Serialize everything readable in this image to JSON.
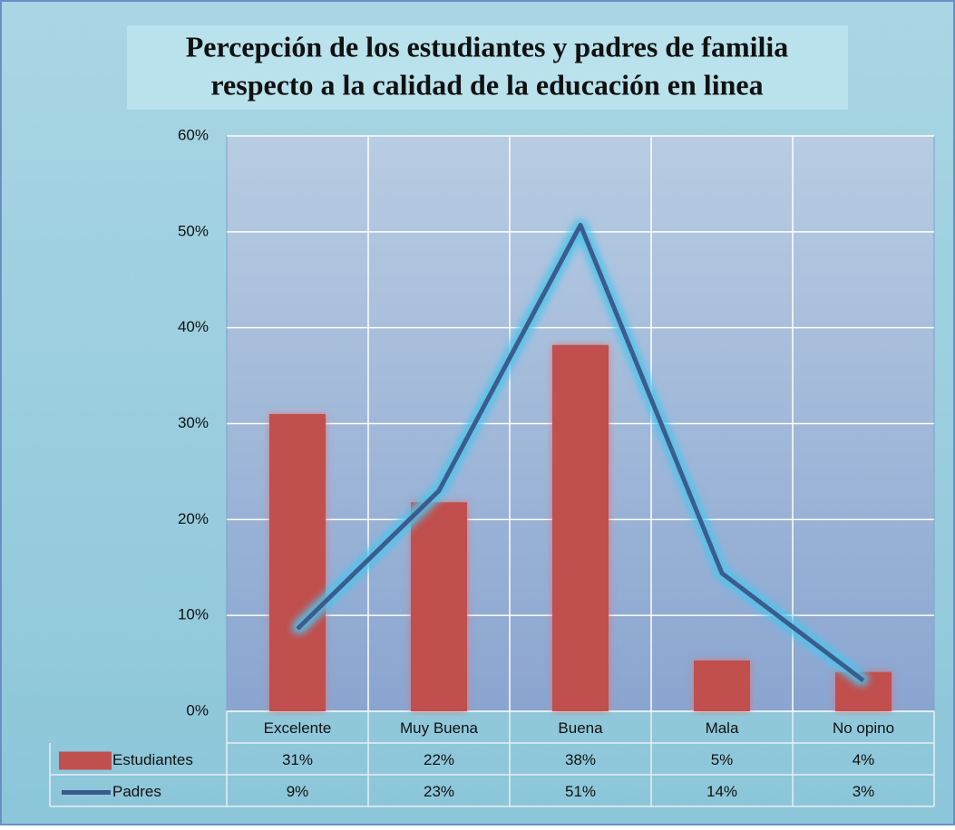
{
  "chart_data": {
    "type": "bar",
    "title": [
      "Percepción de los estudiantes y padres de familia",
      "respecto a la calidad de la educación en linea"
    ],
    "categories": [
      "Excelente",
      "Muy Buena",
      "Buena",
      "Mala",
      "No opino"
    ],
    "series": [
      {
        "name": "Estudiantes",
        "type": "bar",
        "color": "#c0504d",
        "values": [
          31,
          21.8,
          38.2,
          5.3,
          4.1
        ],
        "value_labels": [
          "31%",
          "22%",
          "38%",
          "5%",
          "4%"
        ]
      },
      {
        "name": "Padres",
        "type": "line",
        "color": "#3a5b8c",
        "values": [
          8.6,
          23,
          50.7,
          14.4,
          3.2
        ],
        "value_labels": [
          "9%",
          "23%",
          "51%",
          "14%",
          "3%"
        ]
      }
    ],
    "ylim": [
      0,
      60
    ],
    "yticks": [
      {
        "value": 0,
        "label": "0%"
      },
      {
        "value": 10,
        "label": "10%"
      },
      {
        "value": 20,
        "label": "20%"
      },
      {
        "value": 30,
        "label": "30%"
      },
      {
        "value": 40,
        "label": "40%"
      },
      {
        "value": 50,
        "label": "50%"
      },
      {
        "value": 60,
        "label": "60%"
      }
    ],
    "grid": true,
    "data_table": true
  }
}
